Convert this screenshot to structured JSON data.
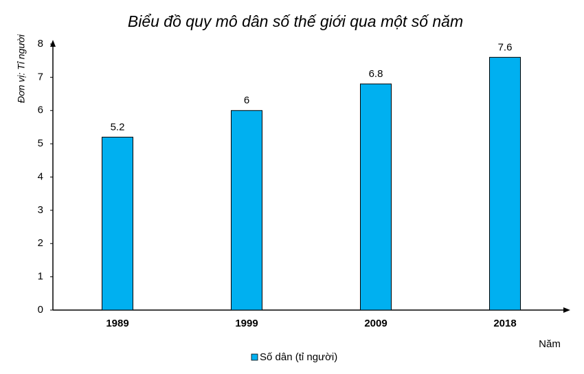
{
  "chart_data": {
    "type": "bar",
    "title": "Biểu đồ quy mô dân số thế giới qua một số năm",
    "y_label": "Đơn vị: Tỉ người",
    "x_label": "Năm",
    "categories": [
      "1989",
      "1999",
      "2009",
      "2018"
    ],
    "series": [
      {
        "name": "Số dân (tỉ người)",
        "color": "#00b0f0",
        "values": [
          5.2,
          6,
          6.8,
          7.6
        ]
      }
    ],
    "ylim": [
      0,
      8
    ],
    "yticks": [
      0,
      1,
      2,
      3,
      4,
      5,
      6,
      7,
      8
    ],
    "grid": false,
    "legend": "bottom"
  }
}
